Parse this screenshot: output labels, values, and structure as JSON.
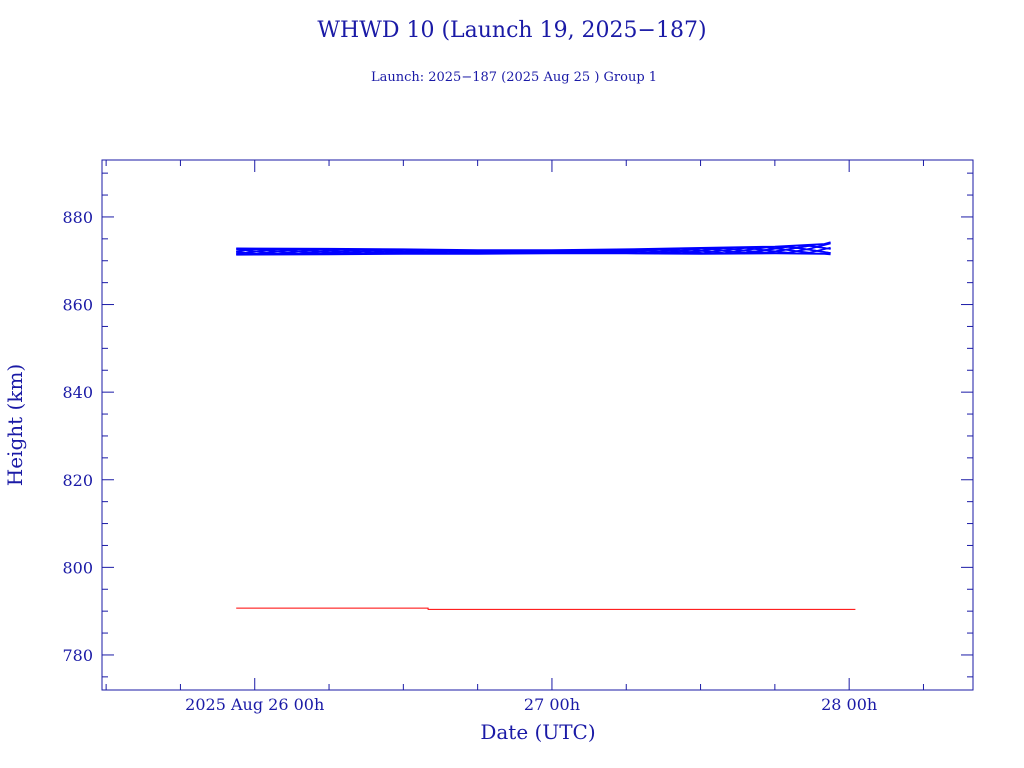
{
  "chart_data": {
    "type": "line",
    "title": "WHWD 10 (Launch 19, 2025−187)",
    "subtitle": "Launch: 2025−187  (2025 Aug 25 )  Group 1",
    "xlabel": "Date (UTC)",
    "ylabel": "Height (km)",
    "xlim": [
      "2025-08-25T11:40",
      "2025-08-28T10:00"
    ],
    "ylim": [
      772,
      893
    ],
    "yticks": [
      780,
      800,
      820,
      840,
      860,
      880
    ],
    "xticks": [
      {
        "t": "2025-08-26T00:00",
        "label": "2025 Aug 26  00h"
      },
      {
        "t": "2025-08-27T00:00",
        "label": "27  00h"
      },
      {
        "t": "2025-08-28T00:00",
        "label": "28  00h"
      }
    ],
    "grid": false,
    "series": [
      {
        "color": "#0000ff",
        "style": "oscillating-band",
        "x": [
          "2025-08-25T22:30",
          "2025-08-26T06:00",
          "2025-08-26T12:00",
          "2025-08-26T18:00",
          "2025-08-27T00:00",
          "2025-08-27T06:00",
          "2025-08-27T12:00",
          "2025-08-27T18:00",
          "2025-08-27T22:00",
          "2025-08-27T22:30"
        ],
        "upper": [
          872.8,
          872.7,
          872.6,
          872.4,
          872.4,
          872.6,
          872.9,
          873.2,
          873.8,
          874.2
        ],
        "lower": [
          871.4,
          871.5,
          871.6,
          871.6,
          871.7,
          871.7,
          871.6,
          871.7,
          871.6,
          871.5
        ]
      },
      {
        "color": "#ff0000",
        "style": "line",
        "x": [
          "2025-08-25T22:30",
          "2025-08-26T14:00",
          "2025-08-26T14:00",
          "2025-08-28T00:30"
        ],
        "y": [
          790.7,
          790.7,
          790.4,
          790.4
        ]
      }
    ]
  }
}
